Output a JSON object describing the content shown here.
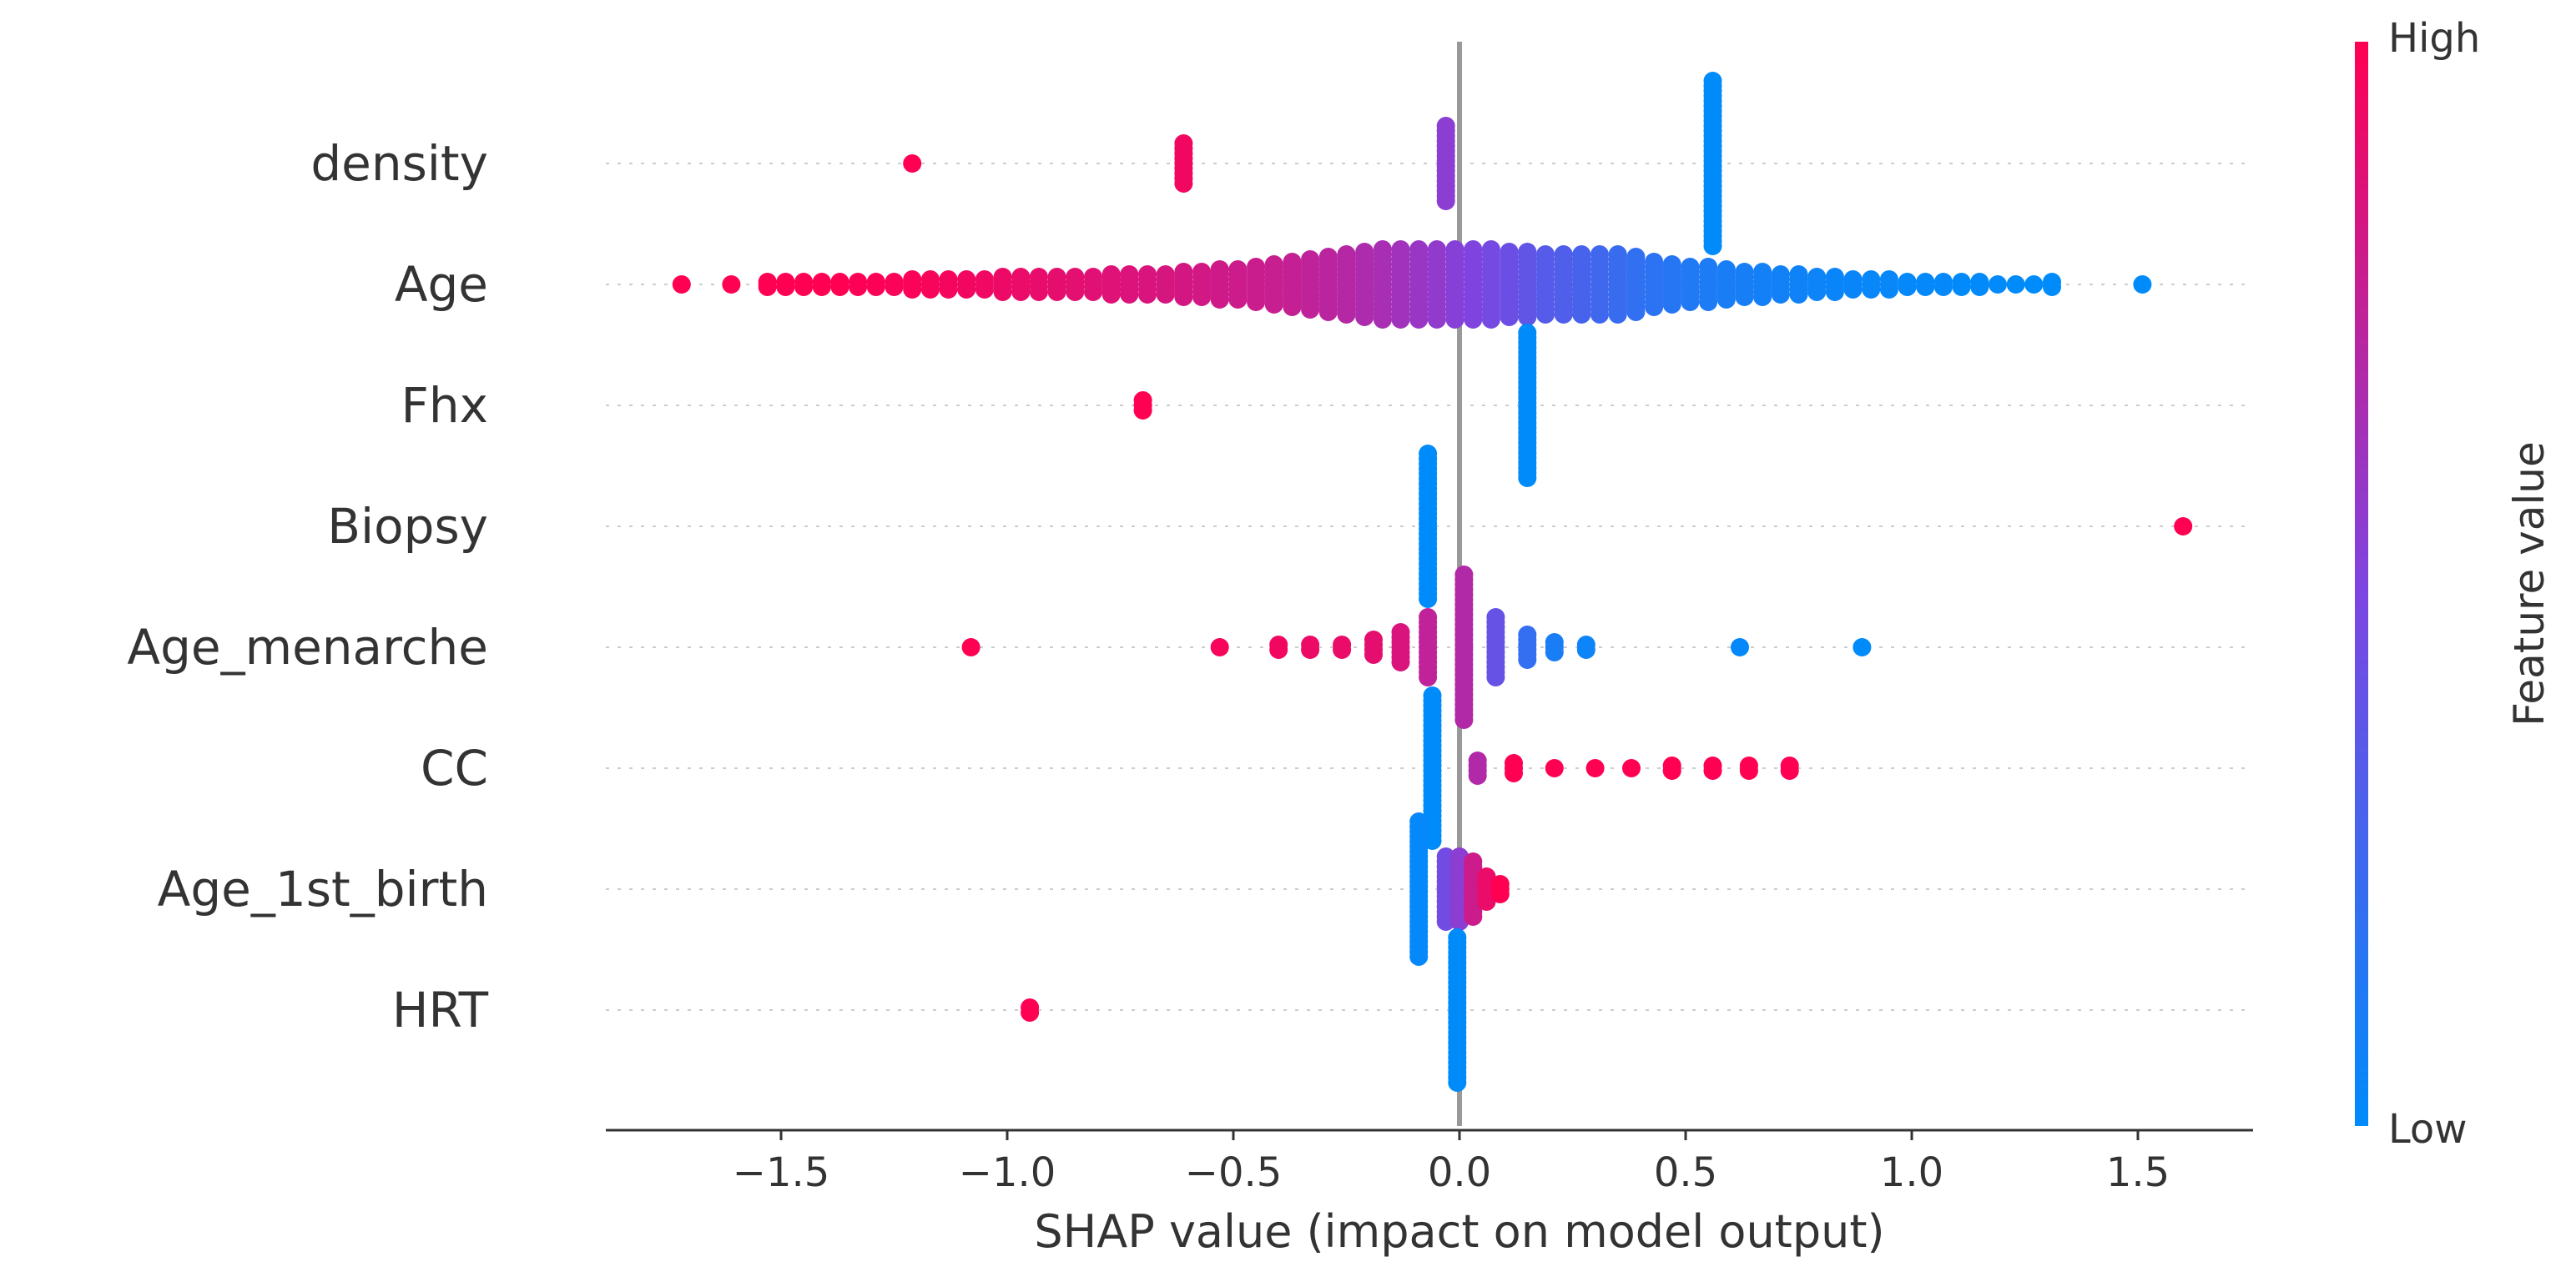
{
  "chart_data": {
    "type": "scatter",
    "subtype": "shap_beeswarm",
    "title": "",
    "xlabel": "SHAP value (impact on model output)",
    "ylabel": "",
    "xlim": [
      -1.87,
      1.75
    ],
    "x_ticks": [
      -1.5,
      -1.0,
      -0.5,
      0.0,
      0.5,
      1.0,
      1.5
    ],
    "x_tick_labels": [
      "−1.5",
      "−1.0",
      "−0.5",
      "0.0",
      "0.5",
      "1.0",
      "1.5"
    ],
    "colorbar": {
      "label": "Feature value",
      "high_label": "High",
      "low_label": "Low",
      "high_color": "#ff0052",
      "low_color": "#008bfb"
    },
    "features": [
      {
        "name": "density",
        "groups": [
          {
            "x": -1.21,
            "v": 1.0,
            "n": 1
          },
          {
            "x": -0.61,
            "v": 0.95,
            "n": 9
          },
          {
            "x": -0.03,
            "v": 0.55,
            "n": 16
          },
          {
            "x": 0.56,
            "v": 0.0,
            "n": 34
          }
        ]
      },
      {
        "name": "Age",
        "groups": [
          {
            "x": -1.72,
            "v": 1.0,
            "n": 1
          },
          {
            "x": -1.61,
            "v": 1.0,
            "n": 1
          },
          {
            "x": -1.53,
            "v": 1.0,
            "n": 2
          },
          {
            "x": -1.49,
            "v": 1.0,
            "n": 2
          },
          {
            "x": -1.45,
            "v": 1.0,
            "n": 2
          },
          {
            "x": -1.41,
            "v": 1.0,
            "n": 2
          },
          {
            "x": -1.37,
            "v": 1.0,
            "n": 2
          },
          {
            "x": -1.33,
            "v": 0.99,
            "n": 2
          },
          {
            "x": -1.29,
            "v": 0.99,
            "n": 2
          },
          {
            "x": -1.25,
            "v": 0.98,
            "n": 2
          },
          {
            "x": -1.21,
            "v": 0.98,
            "n": 3
          },
          {
            "x": -1.17,
            "v": 0.97,
            "n": 3
          },
          {
            "x": -1.13,
            "v": 0.96,
            "n": 3
          },
          {
            "x": -1.09,
            "v": 0.95,
            "n": 3
          },
          {
            "x": -1.05,
            "v": 0.94,
            "n": 3
          },
          {
            "x": -1.01,
            "v": 0.93,
            "n": 4
          },
          {
            "x": -0.97,
            "v": 0.92,
            "n": 4
          },
          {
            "x": -0.93,
            "v": 0.91,
            "n": 4
          },
          {
            "x": -0.89,
            "v": 0.9,
            "n": 4
          },
          {
            "x": -0.85,
            "v": 0.89,
            "n": 4
          },
          {
            "x": -0.81,
            "v": 0.88,
            "n": 4
          },
          {
            "x": -0.77,
            "v": 0.87,
            "n": 5
          },
          {
            "x": -0.73,
            "v": 0.86,
            "n": 5
          },
          {
            "x": -0.69,
            "v": 0.85,
            "n": 5
          },
          {
            "x": -0.65,
            "v": 0.84,
            "n": 5
          },
          {
            "x": -0.61,
            "v": 0.83,
            "n": 6
          },
          {
            "x": -0.57,
            "v": 0.82,
            "n": 6
          },
          {
            "x": -0.53,
            "v": 0.81,
            "n": 7
          },
          {
            "x": -0.49,
            "v": 0.8,
            "n": 7
          },
          {
            "x": -0.45,
            "v": 0.79,
            "n": 8
          },
          {
            "x": -0.41,
            "v": 0.78,
            "n": 9
          },
          {
            "x": -0.37,
            "v": 0.77,
            "n": 10
          },
          {
            "x": -0.33,
            "v": 0.75,
            "n": 11
          },
          {
            "x": -0.29,
            "v": 0.73,
            "n": 12
          },
          {
            "x": -0.25,
            "v": 0.71,
            "n": 13
          },
          {
            "x": -0.21,
            "v": 0.68,
            "n": 14
          },
          {
            "x": -0.17,
            "v": 0.66,
            "n": 15
          },
          {
            "x": -0.13,
            "v": 0.63,
            "n": 15
          },
          {
            "x": -0.09,
            "v": 0.6,
            "n": 15
          },
          {
            "x": -0.05,
            "v": 0.57,
            "n": 15
          },
          {
            "x": -0.01,
            "v": 0.53,
            "n": 15
          },
          {
            "x": 0.03,
            "v": 0.5,
            "n": 15
          },
          {
            "x": 0.07,
            "v": 0.46,
            "n": 15
          },
          {
            "x": 0.11,
            "v": 0.42,
            "n": 14
          },
          {
            "x": 0.15,
            "v": 0.38,
            "n": 14
          },
          {
            "x": 0.19,
            "v": 0.34,
            "n": 13
          },
          {
            "x": 0.23,
            "v": 0.31,
            "n": 13
          },
          {
            "x": 0.27,
            "v": 0.28,
            "n": 13
          },
          {
            "x": 0.31,
            "v": 0.25,
            "n": 13
          },
          {
            "x": 0.35,
            "v": 0.22,
            "n": 13
          },
          {
            "x": 0.39,
            "v": 0.19,
            "n": 12
          },
          {
            "x": 0.43,
            "v": 0.17,
            "n": 10
          },
          {
            "x": 0.47,
            "v": 0.15,
            "n": 9
          },
          {
            "x": 0.51,
            "v": 0.13,
            "n": 8
          },
          {
            "x": 0.55,
            "v": 0.11,
            "n": 8
          },
          {
            "x": 0.59,
            "v": 0.1,
            "n": 7
          },
          {
            "x": 0.63,
            "v": 0.09,
            "n": 6
          },
          {
            "x": 0.67,
            "v": 0.08,
            "n": 6
          },
          {
            "x": 0.71,
            "v": 0.07,
            "n": 5
          },
          {
            "x": 0.75,
            "v": 0.06,
            "n": 5
          },
          {
            "x": 0.79,
            "v": 0.05,
            "n": 4
          },
          {
            "x": 0.83,
            "v": 0.04,
            "n": 4
          },
          {
            "x": 0.87,
            "v": 0.04,
            "n": 3
          },
          {
            "x": 0.91,
            "v": 0.03,
            "n": 3
          },
          {
            "x": 0.95,
            "v": 0.03,
            "n": 3
          },
          {
            "x": 0.99,
            "v": 0.02,
            "n": 2
          },
          {
            "x": 1.03,
            "v": 0.02,
            "n": 2
          },
          {
            "x": 1.07,
            "v": 0.02,
            "n": 2
          },
          {
            "x": 1.11,
            "v": 0.01,
            "n": 2
          },
          {
            "x": 1.15,
            "v": 0.01,
            "n": 2
          },
          {
            "x": 1.19,
            "v": 0.01,
            "n": 1
          },
          {
            "x": 1.23,
            "v": 0.0,
            "n": 1
          },
          {
            "x": 1.27,
            "v": 0.0,
            "n": 1
          },
          {
            "x": 1.31,
            "v": 0.0,
            "n": 2
          },
          {
            "x": 1.51,
            "v": 0.0,
            "n": 1
          }
        ]
      },
      {
        "name": "Fhx",
        "groups": [
          {
            "x": -0.7,
            "v": 1.0,
            "n": 3
          },
          {
            "x": 0.15,
            "v": 0.0,
            "n": 30
          }
        ]
      },
      {
        "name": "Biopsy",
        "groups": [
          {
            "x": -0.07,
            "v": 0.0,
            "n": 30
          },
          {
            "x": 1.6,
            "v": 1.0,
            "n": 1
          }
        ]
      },
      {
        "name": "Age_menarche",
        "groups": [
          {
            "x": -1.08,
            "v": 1.0,
            "n": 1
          },
          {
            "x": -0.53,
            "v": 0.97,
            "n": 1
          },
          {
            "x": -0.4,
            "v": 0.95,
            "n": 2
          },
          {
            "x": -0.33,
            "v": 0.93,
            "n": 2
          },
          {
            "x": -0.26,
            "v": 0.92,
            "n": 2
          },
          {
            "x": -0.19,
            "v": 0.9,
            "n": 4
          },
          {
            "x": -0.13,
            "v": 0.85,
            "n": 7
          },
          {
            "x": -0.07,
            "v": 0.75,
            "n": 13
          },
          {
            "x": 0.01,
            "v": 0.7,
            "n": 30
          },
          {
            "x": 0.08,
            "v": 0.4,
            "n": 13
          },
          {
            "x": 0.15,
            "v": 0.2,
            "n": 6
          },
          {
            "x": 0.21,
            "v": 0.1,
            "n": 3
          },
          {
            "x": 0.28,
            "v": 0.05,
            "n": 2
          },
          {
            "x": 0.62,
            "v": 0.02,
            "n": 1
          },
          {
            "x": 0.89,
            "v": 0.0,
            "n": 1
          }
        ]
      },
      {
        "name": "CC",
        "groups": [
          {
            "x": -0.06,
            "v": 0.0,
            "n": 30
          },
          {
            "x": 0.04,
            "v": 0.7,
            "n": 4
          },
          {
            "x": 0.12,
            "v": 1.0,
            "n": 3
          },
          {
            "x": 0.21,
            "v": 1.0,
            "n": 1
          },
          {
            "x": 0.3,
            "v": 1.0,
            "n": 1
          },
          {
            "x": 0.38,
            "v": 1.0,
            "n": 1
          },
          {
            "x": 0.47,
            "v": 1.0,
            "n": 2
          },
          {
            "x": 0.56,
            "v": 1.0,
            "n": 2
          },
          {
            "x": 0.64,
            "v": 1.0,
            "n": 2
          },
          {
            "x": 0.73,
            "v": 1.0,
            "n": 2
          }
        ]
      },
      {
        "name": "Age_1st_birth",
        "groups": [
          {
            "x": -0.09,
            "v": 0.02,
            "n": 28
          },
          {
            "x": -0.03,
            "v": 0.45,
            "n": 14
          },
          {
            "x": 0.0,
            "v": 0.55,
            "n": 14
          },
          {
            "x": 0.03,
            "v": 0.8,
            "n": 12
          },
          {
            "x": 0.06,
            "v": 0.92,
            "n": 6
          },
          {
            "x": 0.09,
            "v": 1.0,
            "n": 3
          }
        ]
      },
      {
        "name": "HRT",
        "groups": [
          {
            "x": -0.95,
            "v": 1.0,
            "n": 2
          },
          {
            "x": -0.005,
            "v": 0.0,
            "n": 30
          }
        ]
      }
    ]
  }
}
